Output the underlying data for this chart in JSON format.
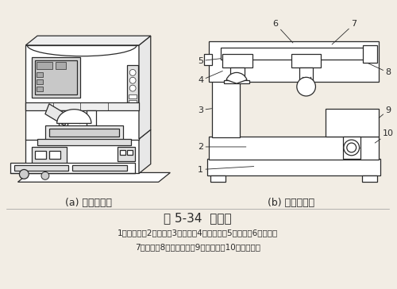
{
  "title": "图 5-34  移印机",
  "caption_a": "(a) 移印机外观",
  "caption_b": "(b) 移印机结构",
  "legend_line1": "1－角铁架；2－底座；3－立柱；4－印版台；5－刮刀；6－横梁；",
  "legend_line2": "7－导轨；8－硅胶印头；9－承印物；10－升降机构",
  "bg_color": "#f2ede4",
  "line_color": "#2a2a2a",
  "font_size_title": 11,
  "font_size_caption": 9,
  "font_size_legend": 7.5,
  "font_size_label": 8
}
